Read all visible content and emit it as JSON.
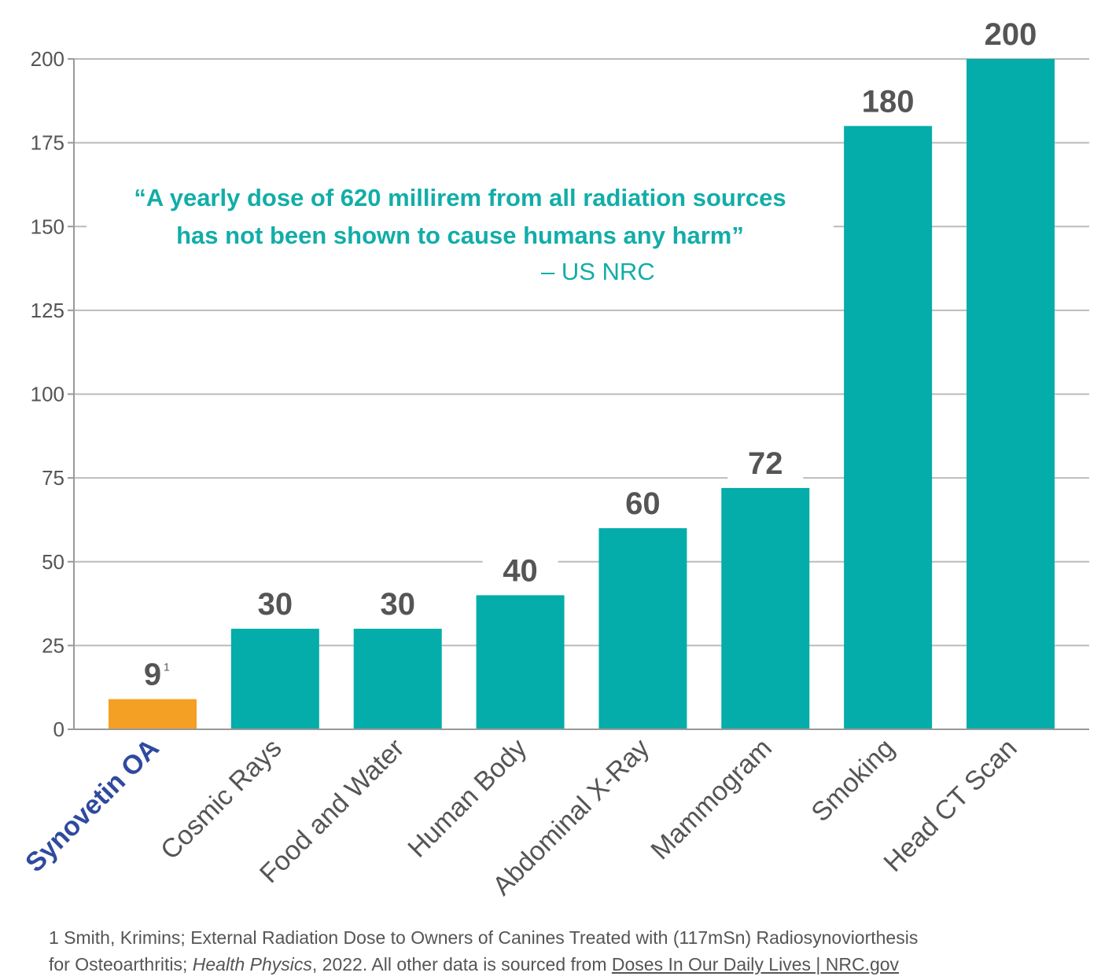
{
  "chart_data": {
    "type": "bar",
    "categories": [
      "Synovetin OA",
      "Cosmic Rays",
      "Food and Water",
      "Human Body",
      "Abdominal X-Ray",
      "Mammogram",
      "Smoking",
      "Head CT Scan"
    ],
    "values": [
      9,
      30,
      30,
      40,
      60,
      72,
      180,
      200
    ],
    "data_labels": [
      "9",
      "30",
      "30",
      "40",
      "60",
      "72",
      "180",
      "200"
    ],
    "highlight_superscript": "1",
    "ylim": [
      0,
      200
    ],
    "yticks": [
      0,
      25,
      50,
      75,
      100,
      125,
      150,
      175,
      200
    ],
    "grid": true,
    "colors": {
      "highlight": "#f4a024",
      "bars": "#04ada9",
      "highlight_label": "#2f4a9e",
      "grid": "#bbbbbb"
    }
  },
  "quote": {
    "line1": "“A yearly dose of 620 millirem from all radiation sources",
    "line2": "has not been shown to cause humans any harm”",
    "source": "– US NRC"
  },
  "footnote": {
    "line1": "1 Smith, Krimins; External Radiation Dose to Owners of Canines Treated with (117mSn) Radiosynoviorthesis",
    "line2_a": "for Osteoarthritis; ",
    "line2_b": "Health Physics",
    "line2_c": ", 2022. All other data is sourced from ",
    "link": "Doses In Our Daily Lives  |  NRC.gov"
  }
}
